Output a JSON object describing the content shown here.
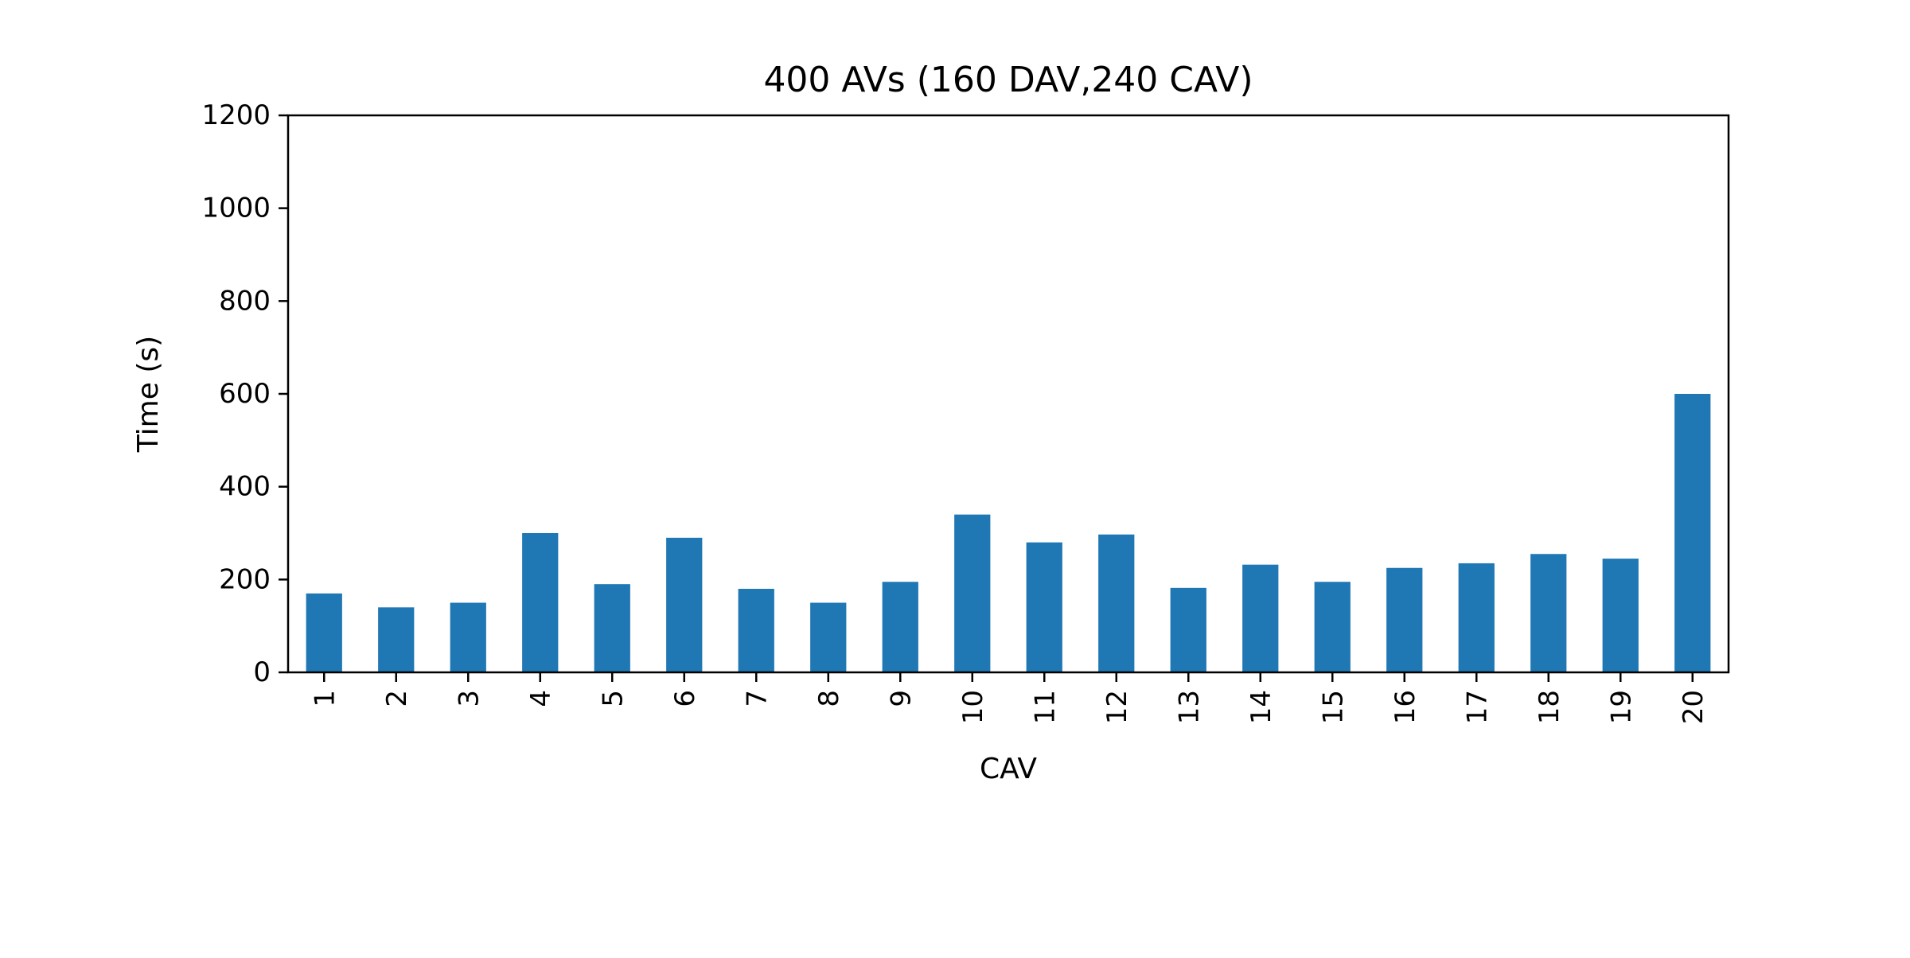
{
  "chart_data": {
    "type": "bar",
    "title": "400 AVs (160 DAV,240 CAV)",
    "xlabel": "CAV",
    "ylabel": "Time (s)",
    "categories": [
      "1",
      "2",
      "3",
      "4",
      "5",
      "6",
      "7",
      "8",
      "9",
      "10",
      "11",
      "12",
      "13",
      "14",
      "15",
      "16",
      "17",
      "18",
      "19",
      "20"
    ],
    "values": [
      170,
      140,
      150,
      300,
      190,
      290,
      180,
      150,
      195,
      340,
      280,
      297,
      182,
      232,
      195,
      225,
      235,
      255,
      245,
      600
    ],
    "ylim": [
      0,
      1200
    ],
    "yticks": [
      0,
      200,
      400,
      600,
      800,
      1000,
      1200
    ],
    "bar_color": "#1f77b4",
    "grid": false,
    "legend": "none"
  }
}
